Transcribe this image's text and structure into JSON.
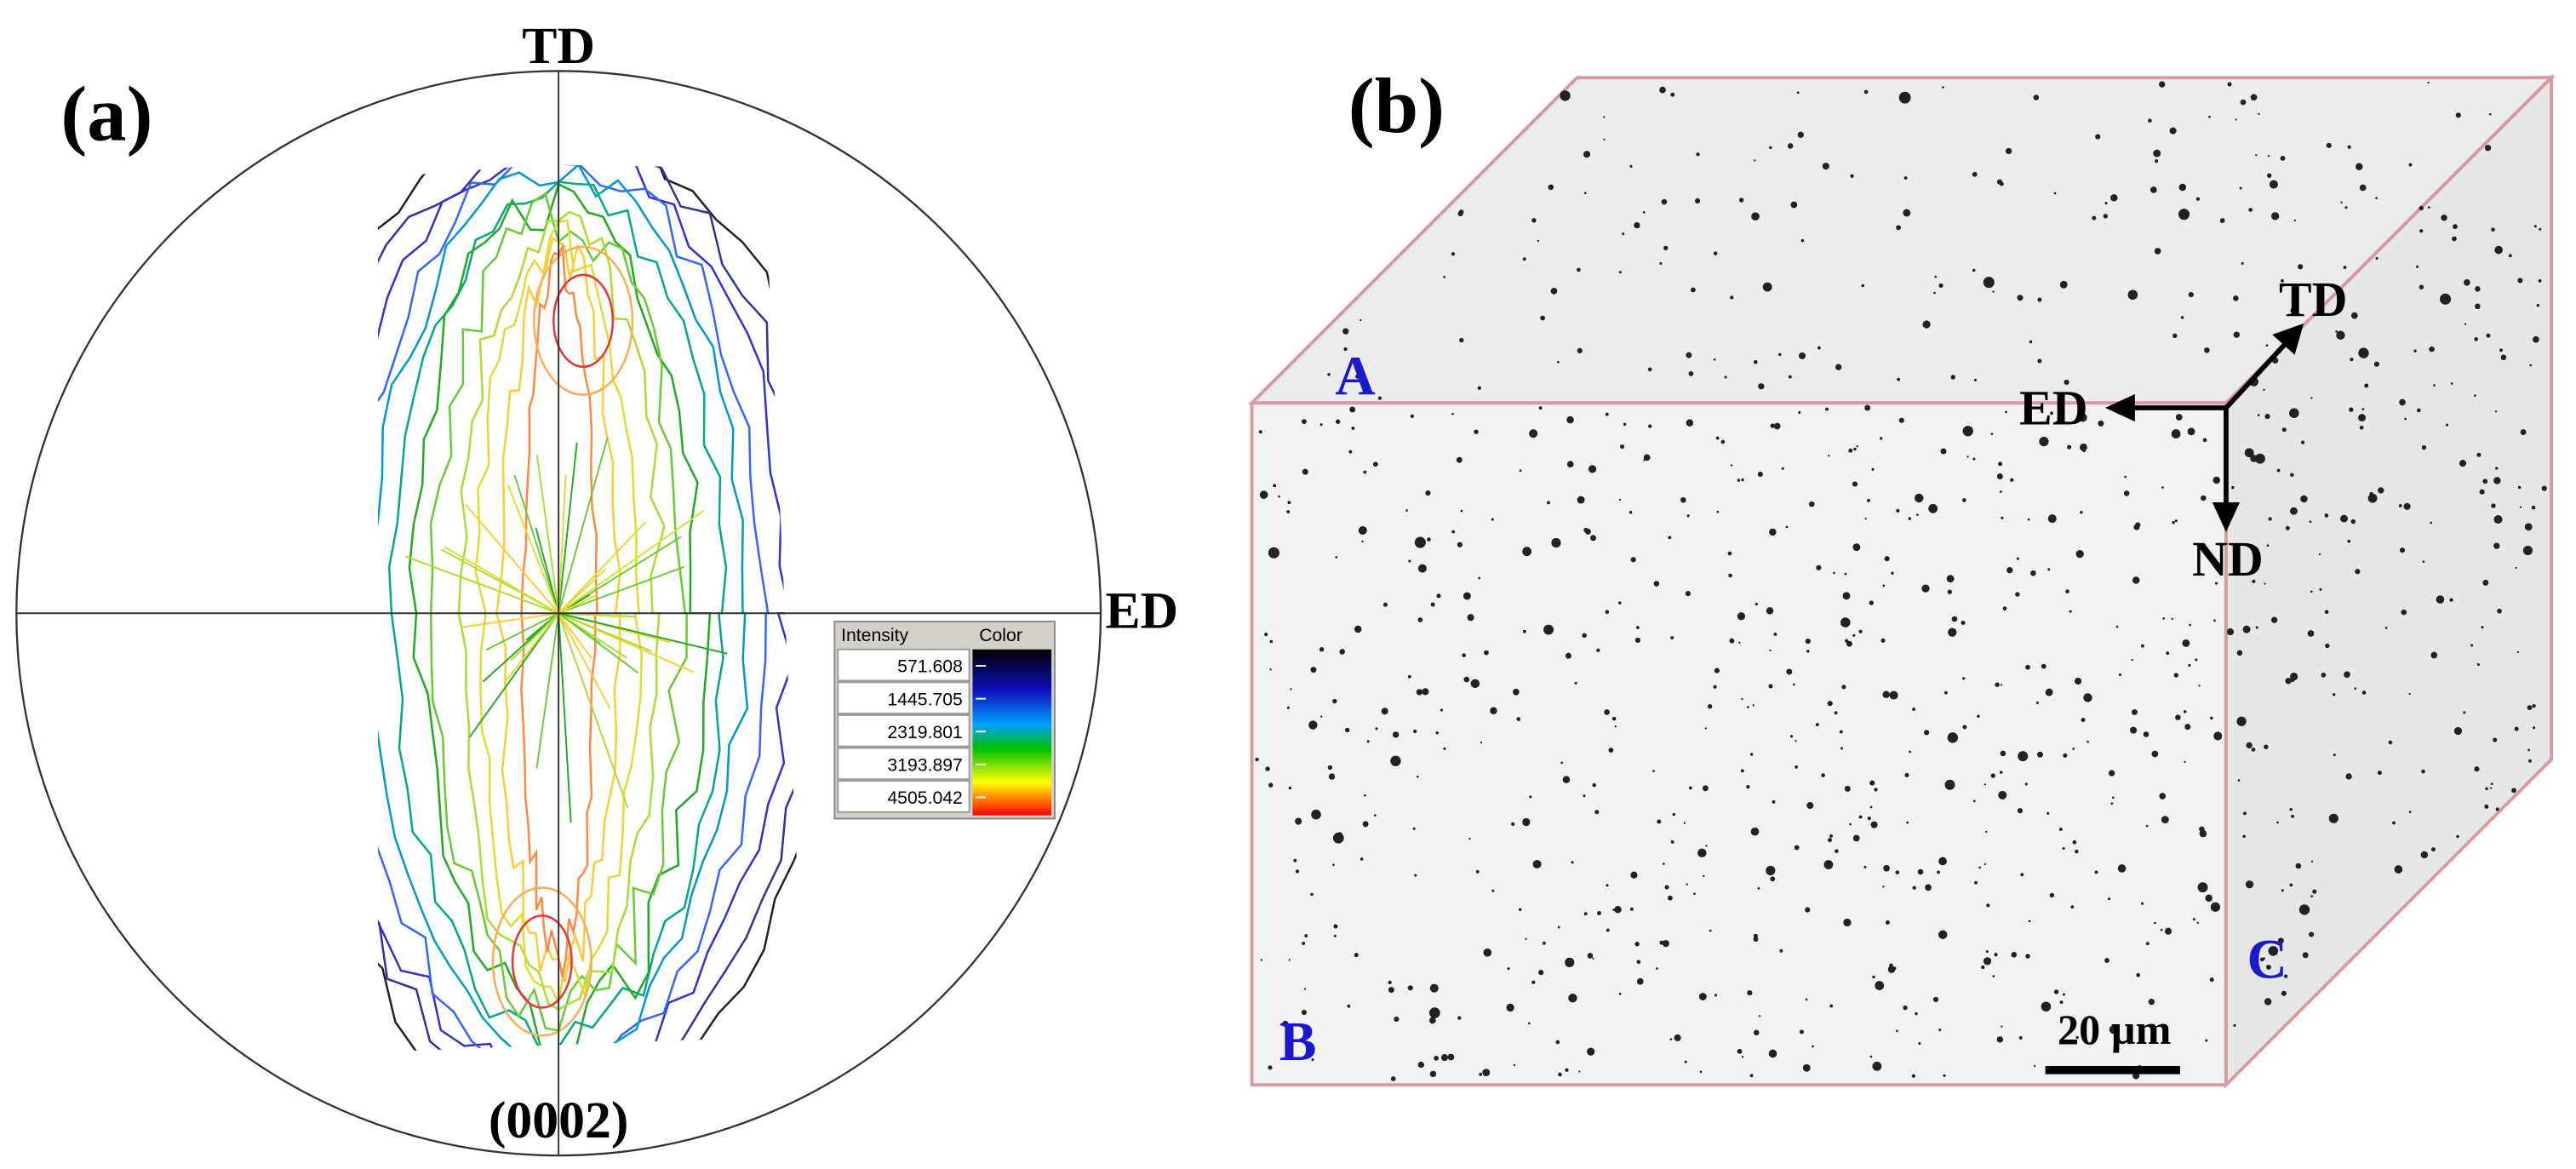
{
  "panel_a": {
    "label": "(a)",
    "axis_top": "TD",
    "axis_right": "ED",
    "plane": "(0002)",
    "legend": {
      "headers": [
        "Intensity",
        "Color"
      ],
      "rows": [
        571.608,
        1445.705,
        2319.801,
        3193.897,
        4505.042
      ]
    }
  },
  "panel_b": {
    "label": "(b)",
    "faces": [
      "A",
      "B",
      "C"
    ],
    "directions": [
      "TD",
      "ED",
      "ND"
    ],
    "scale_bar": "20 µm"
  }
}
